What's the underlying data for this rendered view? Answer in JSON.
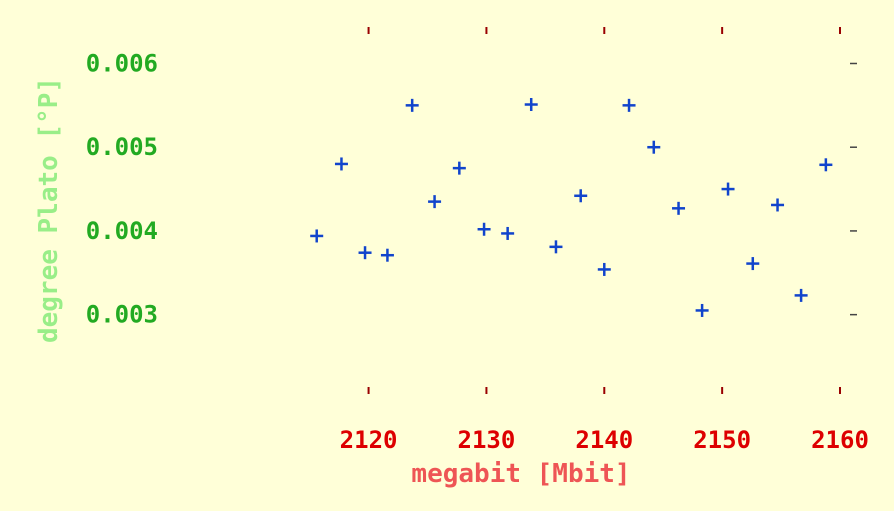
{
  "colors": {
    "background": "#ffffd8",
    "x_tick_label": "#dd0000",
    "x_title": "#ee5555",
    "y_tick_label": "#22aa22",
    "y_title": "#99ee88",
    "marker": "#1144cc",
    "tick_top_bottom": "#990000",
    "tick_right": "#444444"
  },
  "chart_data": {
    "type": "scatter",
    "marker": "plus",
    "xlabel": "megabit [Mbit]",
    "ylabel": "degree Plato [°P]",
    "xlim": [
      2104,
      2160
    ],
    "ylim": [
      0.0021,
      0.0064
    ],
    "x_ticks": [
      2120,
      2130,
      2140,
      2150,
      2160
    ],
    "x_tick_labels": [
      "2120",
      "2130",
      "2140",
      "2150",
      "2160"
    ],
    "y_ticks": [
      0.003,
      0.004,
      0.005,
      0.006
    ],
    "y_tick_labels": [
      "0.003",
      "0.004",
      "0.005",
      "0.006"
    ],
    "grid": false,
    "legend": "none",
    "x": [
      2115.6,
      2117.7,
      2119.7,
      2121.6,
      2123.7,
      2125.6,
      2127.7,
      2129.8,
      2131.8,
      2133.8,
      2135.9,
      2138.0,
      2140.0,
      2142.1,
      2144.2,
      2146.3,
      2148.3,
      2150.5,
      2152.6,
      2154.7,
      2156.7,
      2158.8
    ],
    "y": [
      0.00394,
      0.0048,
      0.00374,
      0.00371,
      0.0055,
      0.00435,
      0.00475,
      0.00402,
      0.00397,
      0.00551,
      0.00381,
      0.00442,
      0.00354,
      0.0055,
      0.005,
      0.00427,
      0.00305,
      0.0045,
      0.00361,
      0.00431,
      0.00323,
      0.00479
    ]
  }
}
